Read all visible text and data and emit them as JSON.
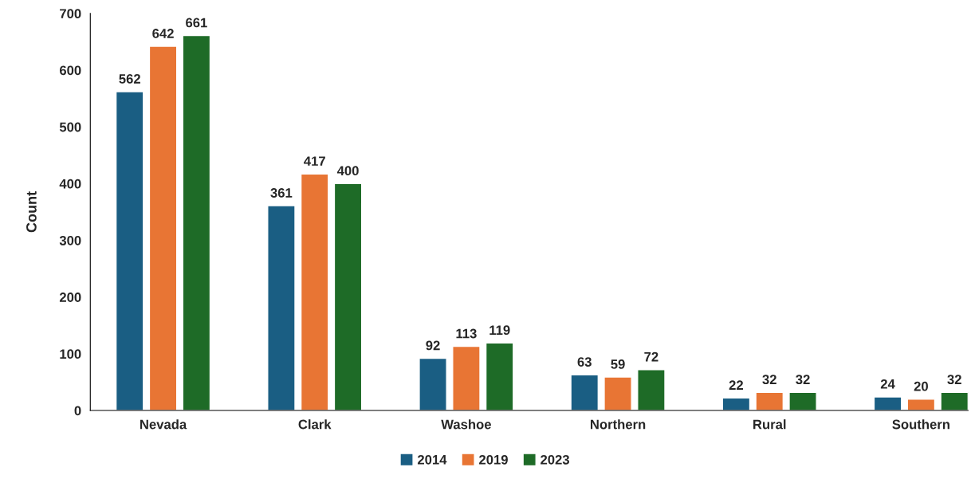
{
  "chart_data": {
    "type": "bar",
    "ylabel": "Count",
    "categories": [
      "Nevada",
      "Clark",
      "Washoe",
      "Northern",
      "Rural",
      "Southern"
    ],
    "series": [
      {
        "name": "2014",
        "color": "#1a5e83",
        "values": [
          562,
          361,
          92,
          63,
          22,
          24
        ]
      },
      {
        "name": "2019",
        "color": "#e87534",
        "values": [
          642,
          417,
          113,
          59,
          32,
          20
        ]
      },
      {
        "name": "2023",
        "color": "#1e6b27",
        "values": [
          661,
          400,
          119,
          72,
          32,
          32
        ]
      }
    ],
    "ylim": [
      0,
      700
    ],
    "yticks": [
      0,
      100,
      200,
      300,
      400,
      500,
      600,
      700
    ],
    "data_labels": true,
    "legend": "bottom",
    "grid": false
  }
}
